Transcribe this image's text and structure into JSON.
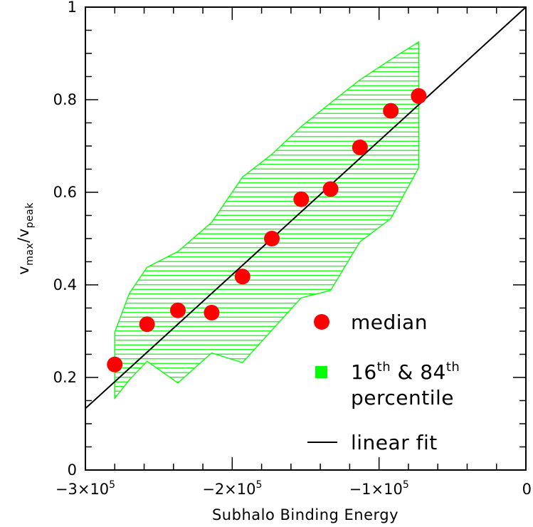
{
  "chart_data": {
    "type": "scatter",
    "xlabel": "Subhalo Binding Energy",
    "ylabel": {
      "base1": "v",
      "sub1": "max",
      "slash": "/",
      "base2": "v",
      "sub2": "peak"
    },
    "xlim": [
      -300000,
      0
    ],
    "ylim": [
      0,
      1
    ],
    "x_ticks": [
      {
        "value": -300000,
        "mantissa": "−3×10",
        "exp": "5"
      },
      {
        "value": -200000,
        "mantissa": "−2×10",
        "exp": "5"
      },
      {
        "value": -100000,
        "mantissa": "−1×10",
        "exp": "5"
      },
      {
        "value": 0,
        "mantissa": "0",
        "exp": ""
      }
    ],
    "y_ticks": [
      {
        "value": 0,
        "label": "0"
      },
      {
        "value": 0.2,
        "label": "0.2"
      },
      {
        "value": 0.4,
        "label": "0.4"
      },
      {
        "value": 0.6,
        "label": "0.6"
      },
      {
        "value": 0.8,
        "label": "0.8"
      },
      {
        "value": 1,
        "label": "1"
      }
    ],
    "grid": false,
    "legend_position": "bottom-right",
    "series": [
      {
        "name": "median",
        "kind": "points",
        "color": "#ff0000",
        "x": [
          -280000,
          -258000,
          -237000,
          -214000,
          -193000,
          -173000,
          -153000,
          -133000,
          -113000,
          -92000,
          -73000
        ],
        "y": [
          0.228,
          0.315,
          0.345,
          0.34,
          0.418,
          0.5,
          0.585,
          0.607,
          0.697,
          0.776,
          0.808
        ]
      },
      {
        "name": "percentile",
        "legend_sup1": "th",
        "legend_mid": " & 84",
        "legend_sup2": "th",
        "legend_pre": "16",
        "kind": "band",
        "color": "#00ff00",
        "x": [
          -280000,
          -270000,
          -258000,
          -237000,
          -214000,
          -193000,
          -173000,
          -153000,
          -133000,
          -113000,
          -92000,
          -73000
        ],
        "upper": [
          0.298,
          0.382,
          0.438,
          0.472,
          0.535,
          0.633,
          0.682,
          0.742,
          0.793,
          0.843,
          0.887,
          0.925
        ],
        "lower": [
          0.155,
          0.195,
          0.235,
          0.188,
          0.253,
          0.232,
          0.302,
          0.372,
          0.388,
          0.493,
          0.543,
          0.653
        ]
      },
      {
        "name": "linear fit",
        "kind": "line",
        "color": "#000000",
        "x": [
          -300000,
          0
        ],
        "y": [
          0.133,
          1.0
        ]
      }
    ]
  }
}
